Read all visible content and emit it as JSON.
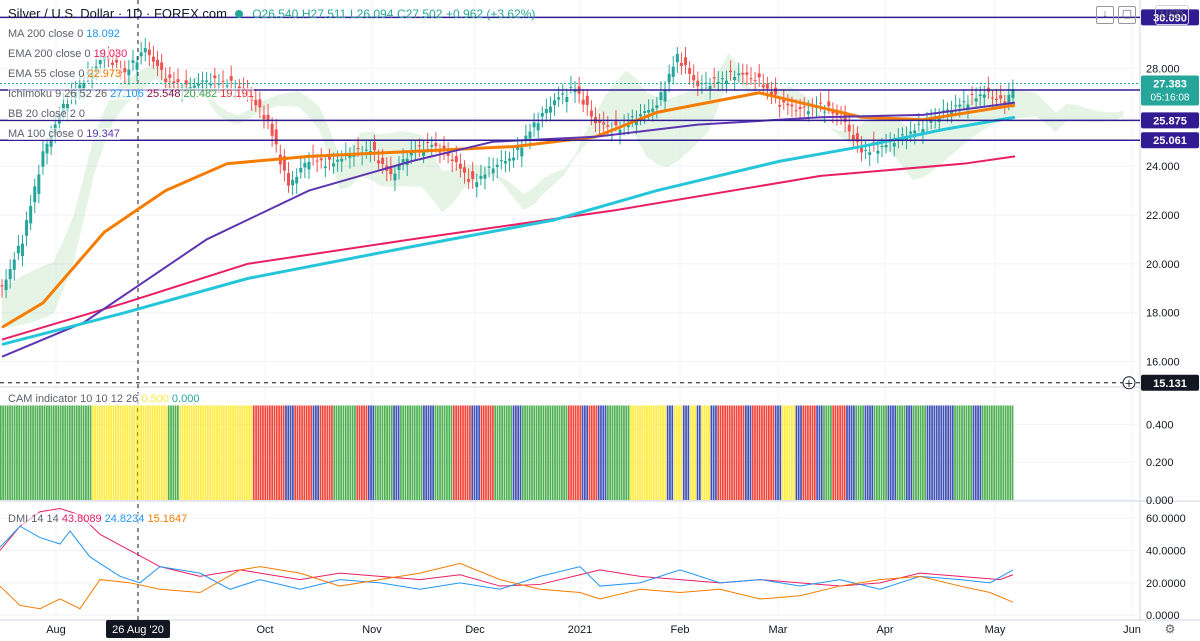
{
  "header": {
    "symbol": "Silver / U.S. Dollar",
    "interval": "1D",
    "source": "FOREX.com",
    "open": "O26.540",
    "high": "H27.511",
    "low": "L26.094",
    "close": "C27.502",
    "change": "+0.962 (+3.62%)",
    "currency": "USD"
  },
  "indicators": [
    {
      "name": "MA 200 close 0",
      "values": [
        {
          "v": "18.092",
          "color": "#2196f3"
        }
      ]
    },
    {
      "name": "EMA 200 close 0",
      "values": [
        {
          "v": "19.030",
          "color": "#e91e63"
        }
      ]
    },
    {
      "name": "EMA 55 close 0",
      "values": [
        {
          "v": "22.973",
          "color": "#f57c00"
        }
      ]
    },
    {
      "name": "Ichimoku 9 26 52 26",
      "values": [
        {
          "v": "27.106",
          "color": "#2196f3"
        },
        {
          "v": "25.548",
          "color": "#880e4f"
        },
        {
          "v": "20.482",
          "color": "#43a047"
        },
        {
          "v": "19.191",
          "color": "#e53935"
        }
      ]
    },
    {
      "name": "BB 20 close 2 0",
      "values": []
    },
    {
      "name": "MA 100 close 0",
      "values": [
        {
          "v": "19.347",
          "color": "#5e35b1"
        }
      ]
    }
  ],
  "cam_label": {
    "name": "CAM indicator 10 10 12 26",
    "v1": "0.500",
    "v2": "0.000"
  },
  "dmi_label": {
    "name": "DMI 14 14",
    "v1": "43.8089",
    "v2": "24.8234",
    "v3": "15.1647"
  },
  "chart_data": [
    {
      "type": "candlestick",
      "title": "Silver / U.S. Dollar 1D FOREX.com",
      "x_labels": [
        "Aug",
        "26 Aug '20",
        "Oct",
        "Nov",
        "Dec",
        "2021",
        "Feb",
        "Mar",
        "Apr",
        "May",
        "Jun"
      ],
      "y_ticks": [
        16.0,
        18.0,
        20.0,
        22.0,
        24.0,
        26.0,
        28.0
      ],
      "ylim": [
        15.0,
        30.8
      ],
      "horizontal_levels": [
        {
          "value": 30.09,
          "label": "30.090",
          "color": "#311b92"
        },
        {
          "value": 27.118,
          "label": "27.118",
          "color": "#311b92"
        },
        {
          "value": 25.875,
          "label": "25.875",
          "color": "#311b92"
        },
        {
          "value": 25.061,
          "label": "25.061",
          "color": "#311b92"
        },
        {
          "value": 15.131,
          "label": "15.131",
          "color": "#131722"
        }
      ],
      "last_price": {
        "value": 27.383,
        "label": "27.383",
        "countdown": "05:16:08",
        "color": "#26a69a"
      },
      "close_path": [
        [
          0,
          19
        ],
        [
          10,
          21
        ],
        [
          20,
          24.5
        ],
        [
          30,
          26.5
        ],
        [
          40,
          27.5
        ],
        [
          50,
          28.5
        ],
        [
          60,
          27.8
        ],
        [
          70,
          28.8
        ],
        [
          80,
          27.6
        ],
        [
          90,
          27.2
        ],
        [
          100,
          27.5
        ],
        [
          110,
          27.4
        ],
        [
          120,
          27.0
        ],
        [
          130,
          25.8
        ],
        [
          140,
          23.2
        ],
        [
          150,
          24.3
        ],
        [
          160,
          24.1
        ],
        [
          170,
          24.5
        ],
        [
          180,
          24.7
        ],
        [
          190,
          23.6
        ],
        [
          200,
          24.6
        ],
        [
          210,
          24.9
        ],
        [
          220,
          24.3
        ],
        [
          230,
          23.3
        ],
        [
          240,
          24.0
        ],
        [
          250,
          24.4
        ],
        [
          260,
          25.7
        ],
        [
          270,
          26.7
        ],
        [
          280,
          27.2
        ],
        [
          290,
          25.8
        ],
        [
          300,
          25.5
        ],
        [
          310,
          26.0
        ],
        [
          320,
          26.5
        ],
        [
          330,
          28.5
        ],
        [
          340,
          27.3
        ],
        [
          350,
          27.5
        ],
        [
          360,
          27.8
        ],
        [
          370,
          27.5
        ],
        [
          380,
          26.6
        ],
        [
          390,
          26.3
        ],
        [
          400,
          26.5
        ],
        [
          410,
          26.0
        ],
        [
          420,
          24.6
        ],
        [
          430,
          24.8
        ],
        [
          440,
          25.2
        ],
        [
          450,
          25.7
        ],
        [
          460,
          26.2
        ],
        [
          470,
          26.6
        ],
        [
          480,
          27.0
        ],
        [
          490,
          26.6
        ],
        [
          495,
          27.4
        ]
      ],
      "series": [
        {
          "name": "EMA 200",
          "color": "#e91e63",
          "values": [
            [
              0,
              16.9
            ],
            [
              60,
              18.4
            ],
            [
              120,
              20.0
            ],
            [
              200,
              21.0
            ],
            [
              300,
              22.2
            ],
            [
              400,
              23.6
            ],
            [
              470,
              24.1
            ],
            [
              495,
              24.4
            ]
          ]
        },
        {
          "name": "EMA 55",
          "color": "#f57c00",
          "values": [
            [
              0,
              17.4
            ],
            [
              20,
              18.4
            ],
            [
              50,
              21.3
            ],
            [
              80,
              23.0
            ],
            [
              110,
              24.1
            ],
            [
              150,
              24.4
            ],
            [
              200,
              24.6
            ],
            [
              250,
              24.8
            ],
            [
              290,
              25.2
            ],
            [
              320,
              26.2
            ],
            [
              370,
              27.0
            ],
            [
              420,
              26.0
            ],
            [
              450,
              25.9
            ],
            [
              495,
              26.5
            ]
          ]
        },
        {
          "name": "MA 100",
          "color": "#5e35b1",
          "values": [
            [
              0,
              16.2
            ],
            [
              40,
              17.6
            ],
            [
              100,
              21.0
            ],
            [
              150,
              23.0
            ],
            [
              200,
              24.2
            ],
            [
              240,
              25.0
            ],
            [
              290,
              25.2
            ],
            [
              340,
              25.7
            ],
            [
              400,
              26.0
            ],
            [
              450,
              26.1
            ],
            [
              495,
              26.6
            ]
          ]
        },
        {
          "name": "MA 200",
          "color": "#26c6da",
          "values": [
            [
              0,
              16.7
            ],
            [
              60,
              18.0
            ],
            [
              120,
              19.4
            ],
            [
              200,
              20.7
            ],
            [
              270,
              21.8
            ],
            [
              320,
              23.0
            ],
            [
              380,
              24.2
            ],
            [
              420,
              24.8
            ],
            [
              460,
              25.5
            ],
            [
              495,
              26.0
            ]
          ]
        }
      ]
    },
    {
      "type": "bar",
      "title": "CAM indicator 10 10 12 26",
      "y_ticks": [
        0.0,
        0.2,
        0.4
      ],
      "ylim": [
        0,
        0.55
      ],
      "bar_value": 0.5,
      "color_runs": [
        [
          "#4caf50",
          40
        ],
        [
          "#ffeb3b",
          33
        ],
        [
          "#4caf50",
          5
        ],
        [
          "#ffeb3b",
          32
        ],
        [
          "#f44336",
          14
        ],
        [
          "#3f51b5",
          4
        ],
        [
          "#f44336",
          8
        ],
        [
          "#3f51b5",
          3
        ],
        [
          "#f44336",
          6
        ],
        [
          "#4caf50",
          10
        ],
        [
          "#f44336",
          5
        ],
        [
          "#3f51b5",
          3
        ],
        [
          "#4caf50",
          8
        ],
        [
          "#3f51b5",
          3
        ],
        [
          "#4caf50",
          10
        ],
        [
          "#3f51b5",
          5
        ],
        [
          "#4caf50",
          8
        ],
        [
          "#f44336",
          8
        ],
        [
          "#3f51b5",
          4
        ],
        [
          "#f44336",
          6
        ],
        [
          "#4caf50",
          8
        ],
        [
          "#3f51b5",
          4
        ],
        [
          "#4caf50",
          20
        ],
        [
          "#f44336",
          6
        ],
        [
          "#3f51b5",
          3
        ],
        [
          "#f44336",
          4
        ],
        [
          "#3f51b5",
          4
        ],
        [
          "#4caf50",
          10
        ],
        [
          "#ffeb3b",
          16
        ],
        [
          "#3f51b5",
          3
        ],
        [
          "#ffeb3b",
          4
        ],
        [
          "#3f51b5",
          3
        ],
        [
          "#ffeb3b",
          3
        ],
        [
          "#3f51b5",
          2
        ],
        [
          "#ffeb3b",
          4
        ],
        [
          "#3f51b5",
          3
        ],
        [
          "#f44336",
          12
        ],
        [
          "#3f51b5",
          3
        ],
        [
          "#f44336",
          10
        ],
        [
          "#3f51b5",
          3
        ],
        [
          "#ffeb3b",
          6
        ],
        [
          "#3f51b5",
          3
        ],
        [
          "#f44336",
          6
        ],
        [
          "#3f51b5",
          3
        ],
        [
          "#4caf50",
          4
        ],
        [
          "#f44336",
          6
        ],
        [
          "#3f51b5",
          4
        ],
        [
          "#4caf50",
          4
        ],
        [
          "#3f51b5",
          4
        ],
        [
          "#4caf50",
          6
        ],
        [
          "#3f51b5",
          4
        ],
        [
          "#4caf50",
          4
        ],
        [
          "#3f51b5",
          3
        ],
        [
          "#4caf50",
          6
        ],
        [
          "#3f51b5",
          12
        ],
        [
          "#4caf50",
          8
        ],
        [
          "#3f51b5",
          4
        ],
        [
          "#4caf50",
          14
        ]
      ]
    },
    {
      "type": "line",
      "title": "DMI 14 14",
      "y_ticks": [
        0.0,
        20.0,
        40.0,
        60.0
      ],
      "ylim": [
        -3,
        70
      ],
      "series": [
        {
          "name": "ADX",
          "color": "#e91e63",
          "values": [
            [
              0,
              40
            ],
            [
              20,
              55
            ],
            [
              40,
              64
            ],
            [
              60,
              66
            ],
            [
              80,
              62
            ],
            [
              100,
              50
            ],
            [
              130,
              40
            ],
            [
              160,
              30
            ],
            [
              200,
              24
            ],
            [
              240,
              28
            ],
            [
              260,
              26
            ],
            [
              300,
              22
            ],
            [
              340,
              26
            ],
            [
              380,
              24
            ],
            [
              420,
              22
            ],
            [
              460,
              25
            ],
            [
              500,
              18
            ],
            [
              540,
              19
            ],
            [
              580,
              25
            ],
            [
              600,
              28
            ],
            [
              640,
              24
            ],
            [
              680,
              22
            ],
            [
              720,
              20
            ],
            [
              760,
              22
            ],
            [
              800,
              20
            ],
            [
              840,
              18
            ],
            [
              880,
              20
            ],
            [
              920,
              26
            ],
            [
              960,
              24
            ],
            [
              1000,
              22
            ],
            [
              1013,
              25
            ]
          ]
        },
        {
          "name": "+DI",
          "color": "#2196f3",
          "values": [
            [
              0,
              42
            ],
            [
              20,
              55
            ],
            [
              40,
              48
            ],
            [
              60,
              44
            ],
            [
              70,
              52
            ],
            [
              90,
              36
            ],
            [
              120,
              24
            ],
            [
              140,
              20
            ],
            [
              160,
              30
            ],
            [
              200,
              26
            ],
            [
              230,
              16
            ],
            [
              260,
              22
            ],
            [
              300,
              16
            ],
            [
              340,
              22
            ],
            [
              380,
              20
            ],
            [
              420,
              16
            ],
            [
              460,
              20
            ],
            [
              500,
              16
            ],
            [
              540,
              24
            ],
            [
              580,
              30
            ],
            [
              600,
              18
            ],
            [
              640,
              20
            ],
            [
              680,
              28
            ],
            [
              720,
              20
            ],
            [
              760,
              22
            ],
            [
              800,
              18
            ],
            [
              840,
              22
            ],
            [
              880,
              16
            ],
            [
              920,
              24
            ],
            [
              960,
              22
            ],
            [
              990,
              20
            ],
            [
              1013,
              28
            ]
          ]
        },
        {
          "name": "-DI",
          "color": "#f57c00",
          "values": [
            [
              0,
              18
            ],
            [
              20,
              6
            ],
            [
              40,
              4
            ],
            [
              60,
              10
            ],
            [
              80,
              4
            ],
            [
              100,
              22
            ],
            [
              130,
              20
            ],
            [
              160,
              16
            ],
            [
              200,
              14
            ],
            [
              240,
              28
            ],
            [
              260,
              30
            ],
            [
              300,
              26
            ],
            [
              340,
              18
            ],
            [
              380,
              22
            ],
            [
              420,
              26
            ],
            [
              460,
              32
            ],
            [
              500,
              22
            ],
            [
              540,
              16
            ],
            [
              580,
              14
            ],
            [
              600,
              10
            ],
            [
              640,
              16
            ],
            [
              680,
              14
            ],
            [
              720,
              16
            ],
            [
              760,
              10
            ],
            [
              800,
              12
            ],
            [
              840,
              18
            ],
            [
              880,
              22
            ],
            [
              920,
              24
            ],
            [
              960,
              18
            ],
            [
              990,
              14
            ],
            [
              1013,
              8
            ]
          ]
        }
      ]
    }
  ],
  "time_axis": {
    "labels": [
      "Aug",
      "26 Aug '20",
      "Oct",
      "Nov",
      "Dec",
      "2021",
      "Feb",
      "Mar",
      "Apr",
      "May",
      "Jun"
    ]
  }
}
